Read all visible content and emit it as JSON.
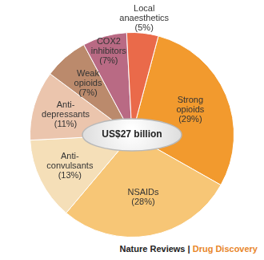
{
  "chart_data": {
    "type": "pie",
    "categories": [
      "Strong opioids",
      "NSAIDs",
      "Anti-convulsants",
      "Anti-depressants",
      "Weak opioids",
      "COX2 inhibitors",
      "Local anaesthetics"
    ],
    "values": [
      29,
      28,
      13,
      11,
      7,
      7,
      5
    ],
    "value_labels": [
      "(29%)",
      "(28%)",
      "(13%)",
      "(11%)",
      "(7%)",
      "(7%)",
      "(5%)"
    ],
    "colors": [
      "#f29a2e",
      "#f7c676",
      "#f5dfb8",
      "#ebc5ad",
      "#bb8a6c",
      "#b96a84",
      "#ea6a4a"
    ],
    "data_labels": true,
    "center_label": "US$27 billion",
    "source": "Nature Reviews | Drug Discovery"
  }
}
